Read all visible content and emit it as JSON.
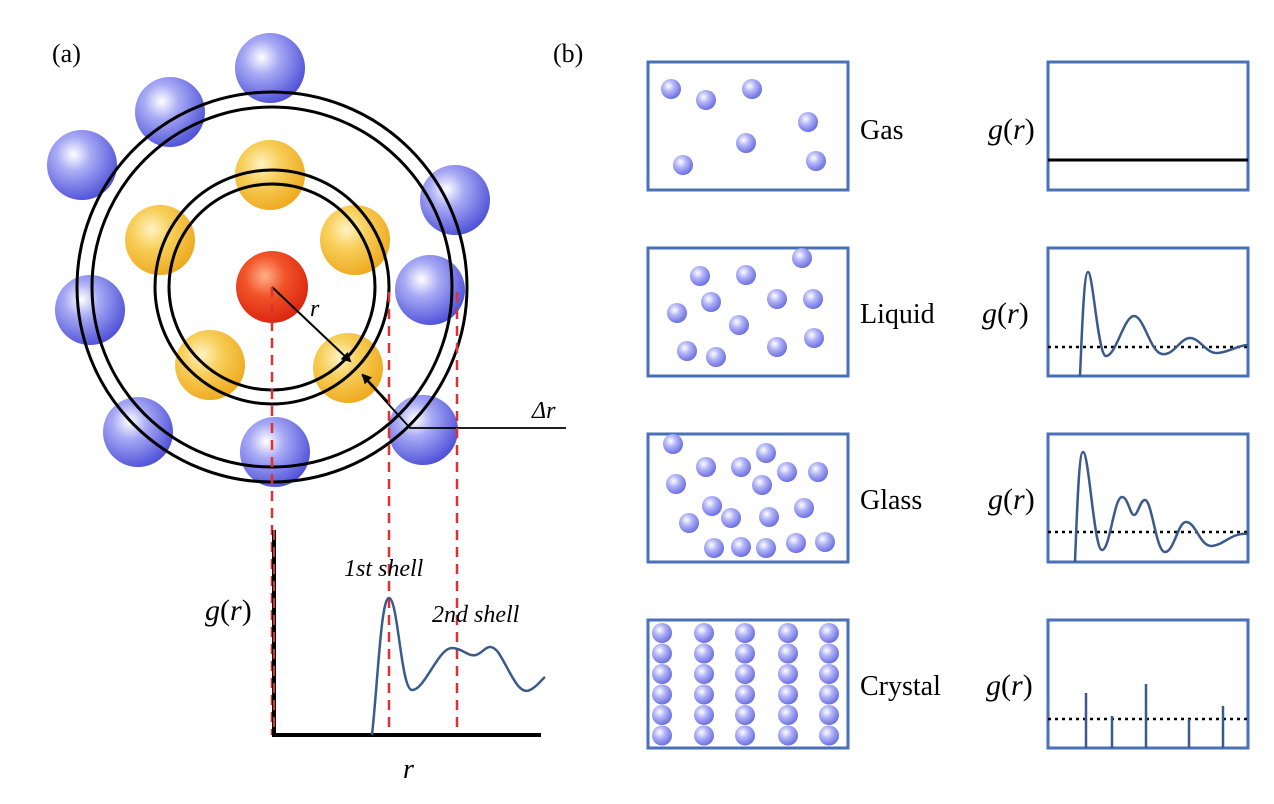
{
  "panel_a": {
    "label": "(a)",
    "r_label": "r",
    "delta_r_label": "Δr",
    "first_shell_label": "1st shell",
    "second_shell_label": "2nd shell",
    "g_label": "g",
    "g_paren_open": "(",
    "g_var": "r",
    "g_paren_close": ")",
    "x_axis_label": "r"
  },
  "panel_b": {
    "label": "(b)",
    "rows": [
      {
        "state": "Gas"
      },
      {
        "state": "Liquid"
      },
      {
        "state": "Glass"
      },
      {
        "state": "Crystal"
      }
    ],
    "g_label": "g",
    "g_paren_open": "(",
    "g_var": "r",
    "g_paren_close": ")"
  },
  "colors": {
    "blue_atom": "#5b5ee0",
    "yellow_atom": "#f2b82a",
    "red_atom": "#e8381a",
    "small_atom": "#8b8ff0",
    "frame": "#4a70b8",
    "curve": "#3a5a8c",
    "dashed_red": "#e03030"
  }
}
